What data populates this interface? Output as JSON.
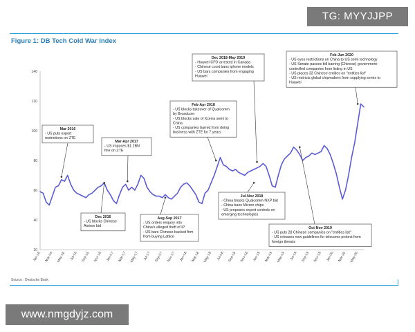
{
  "watermarks": {
    "top": "TG: MYYJJPP",
    "bottom": "www.nmgdyjz.com"
  },
  "figure": {
    "title": "Figure 1: DB Tech Cold War Index",
    "source": "Source : Deutsche Bank"
  },
  "colors": {
    "line": "#5b5bd6",
    "accent": "#2c7fb8",
    "rule": "#2f9fd8"
  },
  "chart_data": {
    "type": "line",
    "title": "DB Tech Cold War Index",
    "xlabel": "",
    "ylabel": "",
    "ylim": [
      20,
      140
    ],
    "yticks": [
      20,
      40,
      60,
      80,
      100,
      120,
      140
    ],
    "x_tick_labels": [
      "Jan-16",
      "Mar-16",
      "May-16",
      "Jul-16",
      "Sep-16",
      "Nov-16",
      "Jan-17",
      "Mar-17",
      "May-17",
      "Jul-17",
      "Sep-17",
      "Nov-17",
      "Jan-18",
      "Mar-18",
      "May-18",
      "Jul-18",
      "Sep-18",
      "Nov-18",
      "Jan-19",
      "Mar-19",
      "May-19",
      "Jul-19",
      "Sep-19",
      "Nov-19",
      "Jan-20",
      "Mar-20",
      "May-20"
    ],
    "series": [
      {
        "name": "DB Tech Cold War Index",
        "x": [
          0,
          0.5,
          1,
          1.5,
          2,
          2.5,
          3,
          3.5,
          4,
          4.5,
          5,
          5.5,
          6,
          6.5,
          7,
          7.5,
          8,
          8.5,
          9,
          9.5,
          10,
          10.5,
          11,
          11.5,
          12,
          12.5,
          13,
          13.5,
          14,
          14.5,
          15,
          15.5,
          16,
          16.5,
          17,
          17.5,
          18,
          18.5,
          19,
          19.5,
          20,
          20.5,
          21,
          21.5,
          22,
          22.5,
          23,
          23.5,
          24,
          24.5,
          25,
          25.5,
          26,
          26.5,
          27,
          27.5,
          28,
          28.5,
          29,
          29.5,
          30,
          30.5,
          31,
          31.5,
          32,
          32.5,
          33,
          33.5,
          34,
          34.5,
          35,
          35.5,
          36,
          36.5,
          37,
          37.5,
          38,
          38.5,
          39,
          39.5,
          40,
          40.5,
          41,
          41.5,
          42,
          42.5,
          43,
          43.5,
          44,
          44.5,
          45,
          45.5,
          46,
          46.5,
          47,
          47.5,
          48,
          48.5,
          49,
          49.5,
          50,
          50.5,
          51,
          51.5,
          52,
          52.5,
          53
        ],
        "values": [
          59,
          58,
          52,
          50,
          56,
          62,
          63,
          67,
          66,
          70,
          64,
          60,
          58,
          57,
          56,
          55,
          57,
          58,
          60,
          62,
          63,
          65,
          60,
          57,
          53,
          51,
          57,
          62,
          64,
          60,
          62,
          60,
          64,
          70,
          68,
          62,
          59,
          57,
          56,
          56,
          55,
          57,
          55,
          54,
          56,
          58,
          62,
          64,
          65,
          63,
          60,
          57,
          52,
          51,
          58,
          60,
          65,
          70,
          76,
          82,
          77,
          76,
          74,
          73,
          74,
          72,
          71,
          70,
          72,
          73,
          74,
          75,
          76,
          78,
          76,
          70,
          63,
          62,
          70,
          77,
          81,
          83,
          85,
          89,
          87,
          84,
          80,
          82,
          83,
          85,
          84,
          85,
          86,
          90,
          88,
          84,
          78,
          71,
          62,
          54,
          60,
          70,
          82,
          92,
          105,
          118,
          116
        ]
      }
    ],
    "annotations": [
      {
        "title": "Mar 2016",
        "lines": [
          "- US puts export",
          "restrictions on ZTE"
        ]
      },
      {
        "title": "Dec 2016",
        "lines": [
          "- US blocks Chinese",
          "Aixtron bid"
        ]
      },
      {
        "title": "Mar-Apr 2017",
        "lines": [
          "- US imposes $1.2BN",
          "fine on ZTE"
        ]
      },
      {
        "title": "Aug-Sep 2017",
        "lines": [
          "- US orders enquiry into",
          "China's alleged theft of IP",
          "- US bars Chinese-backed firm",
          "from buying Lattice"
        ]
      },
      {
        "title": "Feb-Apr 2018",
        "lines": [
          "- US blocks takeover of Qualcomm",
          "by Broadcom",
          "- US blocks sale of Xcerra semi to",
          "China",
          "- US companies barred from doing",
          "business with ZTE for 7 years"
        ]
      },
      {
        "title": "Dec 2018-May 2019",
        "lines": [
          "- Huawei CFO arrested in Canada",
          "- Chinese court bans iphone models",
          "- US bars companies from engaging",
          "Huawei"
        ]
      },
      {
        "title": "Jul-Nov 2018",
        "lines": [
          "- China blocks Qualcomm-NXP bid",
          "- China bans Micron chips",
          "- US proposes export controls on",
          "emerging technologies"
        ]
      },
      {
        "title": "Oct-Nov 2019",
        "lines": [
          "- US puts 28 Chinese companies on \"entities list\"",
          "- US releases new guidelines for telecoms protect from",
          "foreign threats"
        ]
      },
      {
        "title": "Feb-Jun 2020",
        "lines": [
          "- US eyes restrictions on China to US semi technology",
          "- US Senate passes bill barring (Chinese) government-",
          "controlled companies from listing in US",
          "- US places 33 Chinese entities on \"entities list\"",
          "- US restricts global chipmakers from supplying semis to",
          "Huawei"
        ]
      }
    ]
  }
}
